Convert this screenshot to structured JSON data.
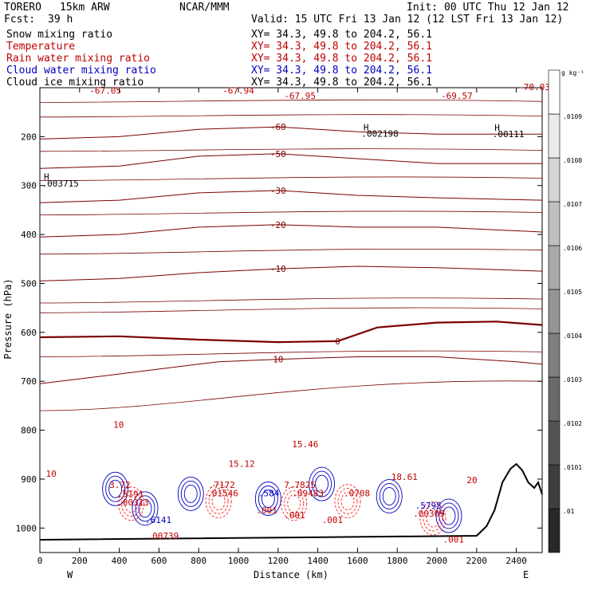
{
  "header": {
    "model": "TORERO",
    "resolution": "15km ARW",
    "org": "NCAR/MMM",
    "init": "Init: 00 UTC Thu 12 Jan 12",
    "fcst_label": "Fcst:",
    "fcst_value": "39 h",
    "valid": "Valid: 15 UTC Fri 13 Jan 12 (12 LST Fri 13 Jan 12)"
  },
  "fields": [
    {
      "name": "Snow mixing ratio",
      "xy": "",
      "color": "#000000"
    },
    {
      "name": "Temperature",
      "xy": "XY= 34.3, 49.8 to 204.2, 56.1",
      "color": "#c00000"
    },
    {
      "name": "Rain water mixing ratio",
      "xy": "XY= 34.3, 49.8 to 204.2, 56.1",
      "color": "#c00000"
    },
    {
      "name": "Cloud water mixing ratio",
      "xy": "XY= 34.3, 49.8 to 204.2, 56.1",
      "color": "#0000c0"
    },
    {
      "name": "Cloud ice mixing ratio",
      "xy": "XY= 34.3, 49.8 to 204.2, 56.1",
      "color": "#000000"
    }
  ],
  "snow_xy": "XY= 34.3, 49.8 to 204.2, 56.1",
  "chart_data": {
    "type": "contour",
    "xlabel": "Distance (km)",
    "ylabel": "Pressure (hPa)",
    "x_ticks": [
      0,
      200,
      400,
      600,
      800,
      1000,
      1200,
      1400,
      1600,
      1800,
      2000,
      2200,
      2400
    ],
    "y_ticks": [
      200,
      300,
      400,
      500,
      600,
      700,
      800,
      900,
      1000
    ],
    "xlim": [
      0,
      2530
    ],
    "ylim": [
      1050,
      100
    ],
    "x_end_labels": {
      "left": "W",
      "right": "E"
    },
    "colorbar": {
      "unit": "g kg⁻¹",
      "ticks": [
        ".01",
        ".0101",
        ".0102",
        ".0103",
        ".0104",
        ".0105",
        ".0106",
        ".0107",
        ".0108",
        ".0109"
      ]
    },
    "temperature_isotherms": [
      {
        "label": "-60",
        "points": [
          [
            0,
            205
          ],
          [
            400,
            200
          ],
          [
            800,
            185
          ],
          [
            1200,
            180
          ],
          [
            1600,
            190
          ],
          [
            2000,
            195
          ],
          [
            2530,
            195
          ]
        ]
      },
      {
        "label": "-50",
        "points": [
          [
            0,
            265
          ],
          [
            400,
            260
          ],
          [
            800,
            240
          ],
          [
            1200,
            235
          ],
          [
            1600,
            245
          ],
          [
            2000,
            255
          ],
          [
            2530,
            255
          ]
        ]
      },
      {
        "label": "-30",
        "points": [
          [
            0,
            335
          ],
          [
            400,
            330
          ],
          [
            800,
            315
          ],
          [
            1200,
            310
          ],
          [
            1600,
            320
          ],
          [
            2000,
            325
          ],
          [
            2530,
            330
          ]
        ]
      },
      {
        "label": "-20",
        "points": [
          [
            0,
            405
          ],
          [
            400,
            400
          ],
          [
            800,
            385
          ],
          [
            1200,
            380
          ],
          [
            1600,
            385
          ],
          [
            2000,
            385
          ],
          [
            2530,
            395
          ]
        ]
      },
      {
        "label": "-10",
        "points": [
          [
            0,
            495
          ],
          [
            400,
            490
          ],
          [
            800,
            478
          ],
          [
            1200,
            470
          ],
          [
            1600,
            465
          ],
          [
            2000,
            468
          ],
          [
            2530,
            475
          ]
        ]
      },
      {
        "label": "0",
        "points": [
          [
            0,
            610
          ],
          [
            400,
            608
          ],
          [
            800,
            615
          ],
          [
            1200,
            620
          ],
          [
            1500,
            618
          ],
          [
            1700,
            590
          ],
          [
            2000,
            580
          ],
          [
            2300,
            578
          ],
          [
            2530,
            585
          ]
        ]
      },
      {
        "label": "10",
        "points": [
          [
            0,
            705
          ],
          [
            300,
            690
          ],
          [
            600,
            675
          ],
          [
            900,
            660
          ],
          [
            1200,
            655
          ],
          [
            1600,
            650
          ],
          [
            2000,
            650
          ],
          [
            2400,
            660
          ],
          [
            2530,
            665
          ]
        ]
      }
    ],
    "labels": [
      {
        "text": "-67.05",
        "x": 250,
        "y": 112,
        "color": "#c00000"
      },
      {
        "text": "-67.94",
        "x": 920,
        "y": 112,
        "color": "#c00000"
      },
      {
        "text": "-67.95",
        "x": 1230,
        "y": 123,
        "color": "#c00000"
      },
      {
        "text": "-69.57",
        "x": 2020,
        "y": 123,
        "color": "#c00000"
      },
      {
        "text": "-70.03",
        "x": 2410,
        "y": 105,
        "color": "#c00000"
      },
      {
        "text": "H",
        "x": 1630,
        "y": 187,
        "color": "#000000"
      },
      {
        "text": ".002198",
        "x": 1620,
        "y": 200,
        "color": "#000000"
      },
      {
        "text": "H",
        "x": 2290,
        "y": 188,
        "color": "#000000"
      },
      {
        "text": ".00111",
        "x": 2280,
        "y": 201,
        "color": "#000000"
      },
      {
        "text": "H",
        "x": 20,
        "y": 288,
        "color": "#000000"
      },
      {
        "text": ".003715",
        "x": 10,
        "y": 302,
        "color": "#000000"
      },
      {
        "text": "15.46",
        "x": 1270,
        "y": 835,
        "color": "#c00000"
      },
      {
        "text": "15.12",
        "x": 950,
        "y": 875,
        "color": "#c00000"
      },
      {
        "text": "18.61",
        "x": 1770,
        "y": 902,
        "color": "#c00000"
      },
      {
        "text": "3.72",
        "x": 350,
        "y": 918,
        "color": "#c00000"
      },
      {
        "text": ".5191",
        "x": 390,
        "y": 937,
        "color": "#c00000"
      },
      {
        "text": ".00313",
        "x": 390,
        "y": 954,
        "color": "#c00000"
      },
      {
        "text": ".6141",
        "x": 530,
        "y": 990,
        "color": "#0000c0"
      },
      {
        "text": ".00739",
        "x": 540,
        "y": 1022,
        "color": "#c00000"
      },
      {
        "text": ".7172",
        "x": 850,
        "y": 918,
        "color": "#c00000"
      },
      {
        "text": ".01546",
        "x": 840,
        "y": 935,
        "color": "#c00000"
      },
      {
        "text": ".584",
        "x": 1100,
        "y": 935,
        "color": "#0000c0"
      },
      {
        "text": ".001",
        "x": 1090,
        "y": 970,
        "color": "#c00000"
      },
      {
        "text": "7.7825",
        "x": 1230,
        "y": 918,
        "color": "#c00000"
      },
      {
        "text": ".09483",
        "x": 1270,
        "y": 935,
        "color": "#c00000"
      },
      {
        "text": ".001",
        "x": 1230,
        "y": 980,
        "color": "#c00000"
      },
      {
        "text": ".001",
        "x": 1420,
        "y": 990,
        "color": "#c00000"
      },
      {
        "text": ".0708",
        "x": 1530,
        "y": 935,
        "color": "#c00000"
      },
      {
        "text": ".5795",
        "x": 1890,
        "y": 960,
        "color": "#0000c0"
      },
      {
        "text": ".00309",
        "x": 1880,
        "y": 977,
        "color": "#c00000"
      },
      {
        "text": ".001",
        "x": 2030,
        "y": 1030,
        "color": "#c00000"
      },
      {
        "text": "20",
        "x": 2150,
        "y": 908,
        "color": "#c00000"
      },
      {
        "text": "10",
        "x": 30,
        "y": 895,
        "color": "#c00000"
      },
      {
        "text": "10",
        "x": 370,
        "y": 795,
        "color": "#c00000"
      }
    ]
  }
}
